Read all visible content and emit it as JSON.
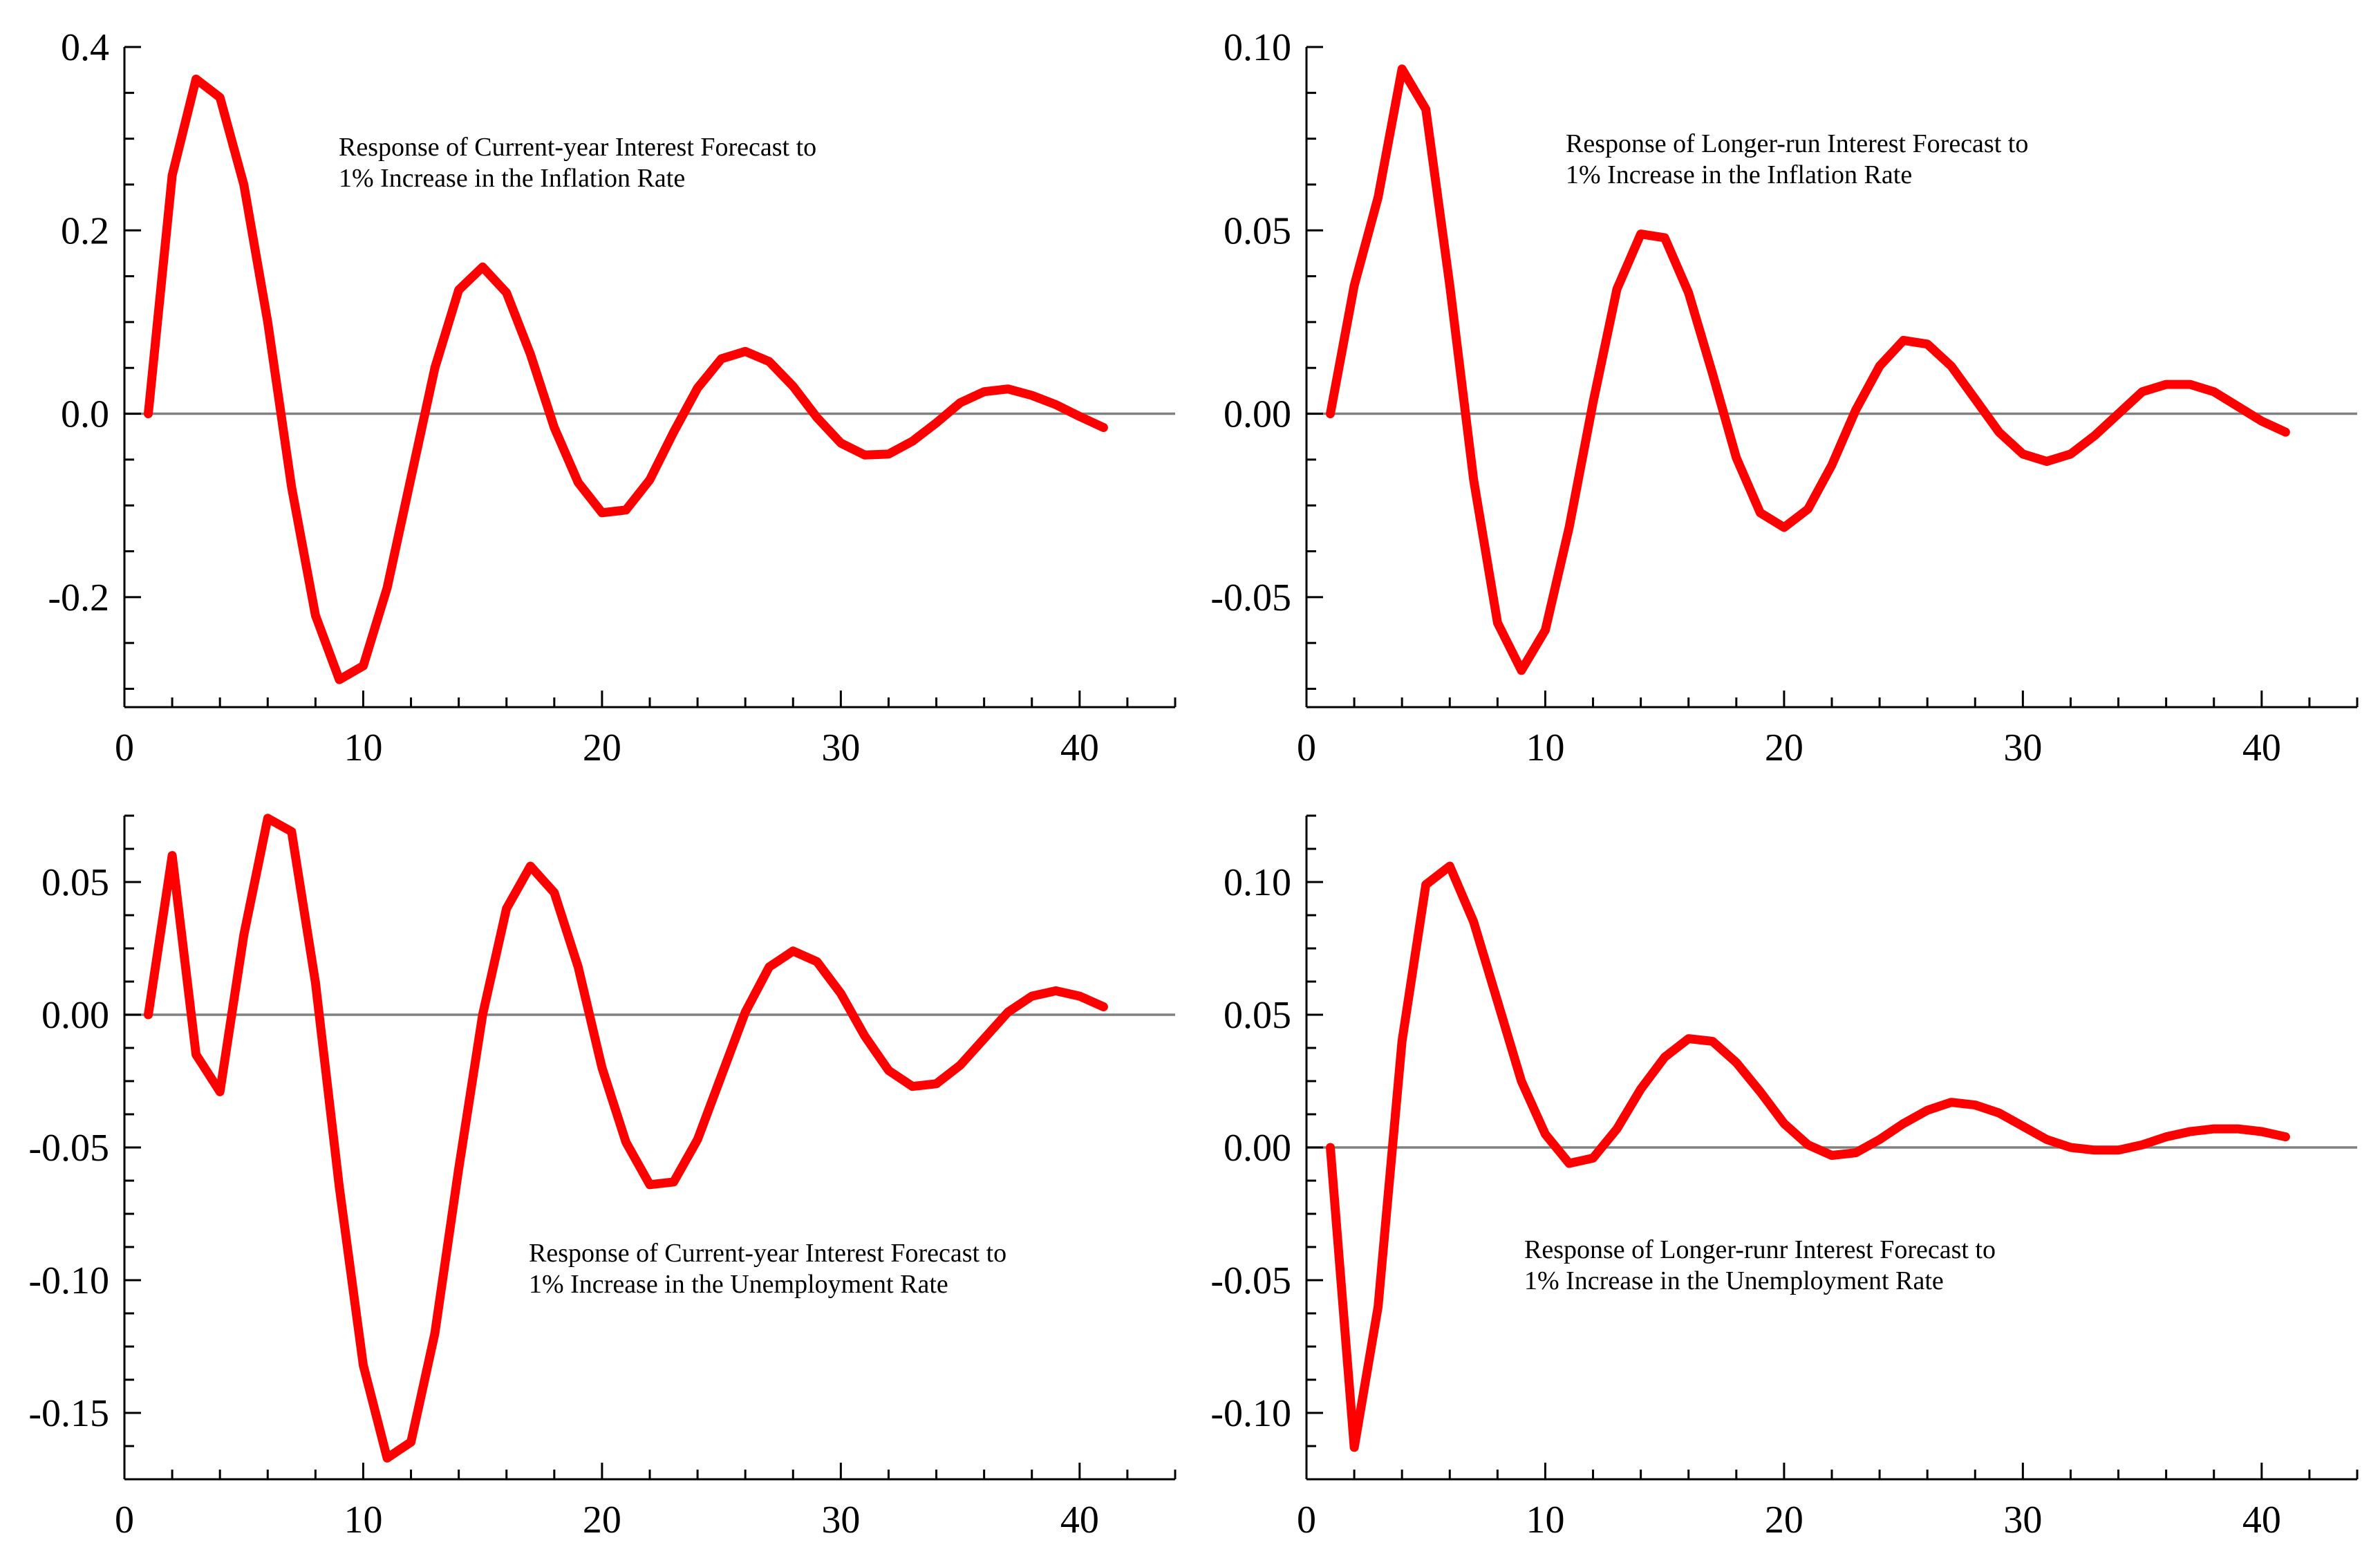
{
  "colors": {
    "series": "#ff0000",
    "zero_line": "#808080",
    "axis": "#000000"
  },
  "chart_data": [
    {
      "type": "line",
      "annotation": [
        "Response of Current-year Interest Forecast to",
        "1% Increase in the Inflation Rate"
      ],
      "xlim": [
        0,
        44
      ],
      "ylim": [
        -0.32,
        0.4
      ],
      "x_ticks": [
        0,
        10,
        20,
        30,
        40
      ],
      "x_tick_labels": [
        "0",
        "10",
        "20",
        "30",
        "40"
      ],
      "y_ticks": [
        -0.2,
        0,
        0.2,
        0.4
      ],
      "y_tick_labels": [
        "-0.2",
        "0.0",
        "0.2",
        "0.4"
      ],
      "y_minor_step": 0.05,
      "x_minor_step": 2,
      "zero_line": true,
      "x": [
        1,
        2,
        3,
        4,
        5,
        6,
        7,
        8,
        9,
        10,
        11,
        12,
        13,
        14,
        15,
        16,
        17,
        18,
        19,
        20,
        21,
        22,
        23,
        24,
        25,
        26,
        27,
        28,
        29,
        30,
        31,
        32,
        33,
        34,
        35,
        36,
        37,
        38,
        39,
        40,
        41
      ],
      "series": [
        {
          "values": [
            0,
            0.26,
            0.365,
            0.345,
            0.25,
            0.1,
            -0.08,
            -0.22,
            -0.29,
            -0.275,
            -0.19,
            -0.07,
            0.05,
            0.135,
            0.16,
            0.132,
            0.065,
            -0.015,
            -0.075,
            -0.108,
            -0.105,
            -0.072,
            -0.02,
            0.028,
            0.06,
            0.068,
            0.057,
            0.03,
            -0.004,
            -0.032,
            -0.045,
            -0.044,
            -0.03,
            -0.01,
            0.012,
            0.024,
            0.027,
            0.02,
            0.01,
            -0.003,
            -0.015
          ]
        }
      ]
    },
    {
      "type": "line",
      "annotation": [
        "Response of Longer-run Interest Forecast to",
        "1% Increase in the Inflation Rate"
      ],
      "xlim": [
        0,
        44
      ],
      "ylim": [
        -0.08,
        0.1
      ],
      "x_ticks": [
        0,
        10,
        20,
        30,
        40
      ],
      "x_tick_labels": [
        "0",
        "10",
        "20",
        "30",
        "40"
      ],
      "y_ticks": [
        -0.05,
        0,
        0.05,
        0.1
      ],
      "y_tick_labels": [
        "-0.05",
        "0.00",
        "0.05",
        "0.10"
      ],
      "y_minor_step": 0.0125,
      "x_minor_step": 2,
      "zero_line": true,
      "x": [
        1,
        2,
        3,
        4,
        5,
        6,
        7,
        8,
        9,
        10,
        11,
        12,
        13,
        14,
        15,
        16,
        17,
        18,
        19,
        20,
        21,
        22,
        23,
        24,
        25,
        26,
        27,
        28,
        29,
        30,
        31,
        32,
        33,
        34,
        35,
        36,
        37,
        38,
        39,
        40,
        41
      ],
      "series": [
        {
          "values": [
            0,
            0.035,
            0.059,
            0.094,
            0.083,
            0.035,
            -0.018,
            -0.057,
            -0.07,
            -0.059,
            -0.031,
            0.003,
            0.034,
            0.049,
            0.048,
            0.033,
            0.011,
            -0.012,
            -0.027,
            -0.031,
            -0.026,
            -0.014,
            0.001,
            0.013,
            0.02,
            0.019,
            0.013,
            0.004,
            -0.005,
            -0.011,
            -0.013,
            -0.011,
            -0.006,
            0,
            0.006,
            0.008,
            0.008,
            0.006,
            0.002,
            -0.002,
            -0.005
          ]
        }
      ]
    },
    {
      "type": "line",
      "annotation": [
        "Response of Current-year Interest Forecast to",
        "1% Increase in the Unemployment Rate"
      ],
      "xlim": [
        0,
        44
      ],
      "ylim": [
        -0.175,
        0.075
      ],
      "x_ticks": [
        0,
        10,
        20,
        30,
        40
      ],
      "x_tick_labels": [
        "0",
        "10",
        "20",
        "30",
        "40"
      ],
      "y_ticks": [
        -0.15,
        -0.1,
        -0.05,
        0,
        0.05
      ],
      "y_tick_labels": [
        "-0.15",
        "-0.10",
        "-0.05",
        "0.00",
        "0.05"
      ],
      "y_minor_step": 0.0125,
      "x_minor_step": 2,
      "zero_line": true,
      "x": [
        1,
        2,
        3,
        4,
        5,
        6,
        7,
        8,
        9,
        10,
        11,
        12,
        13,
        14,
        15,
        16,
        17,
        18,
        19,
        20,
        21,
        22,
        23,
        24,
        25,
        26,
        27,
        28,
        29,
        30,
        31,
        32,
        33,
        34,
        35,
        36,
        37,
        38,
        39,
        40,
        41
      ],
      "series": [
        {
          "values": [
            0,
            0.06,
            -0.015,
            -0.029,
            0.03,
            0.074,
            0.069,
            0.012,
            -0.065,
            -0.132,
            -0.167,
            -0.161,
            -0.12,
            -0.058,
            0,
            0.04,
            0.056,
            0.046,
            0.018,
            -0.02,
            -0.048,
            -0.064,
            -0.063,
            -0.047,
            -0.023,
            0.001,
            0.018,
            0.024,
            0.02,
            0.008,
            -0.008,
            -0.021,
            -0.027,
            -0.026,
            -0.019,
            -0.009,
            0.001,
            0.007,
            0.009,
            0.007,
            0.003
          ]
        }
      ]
    },
    {
      "type": "line",
      "annotation": [
        "Response of Longer-runr Interest Forecast to",
        "1% Increase in the Unemployment Rate"
      ],
      "xlim": [
        0,
        44
      ],
      "ylim": [
        -0.125,
        0.125
      ],
      "x_ticks": [
        0,
        10,
        20,
        30,
        40
      ],
      "x_tick_labels": [
        "0",
        "10",
        "20",
        "30",
        "40"
      ],
      "y_ticks": [
        -0.1,
        -0.05,
        0,
        0.05,
        0.1
      ],
      "y_tick_labels": [
        "-0.10",
        "-0.05",
        "0.00",
        "0.05",
        "0.10"
      ],
      "y_minor_step": 0.0125,
      "x_minor_step": 2,
      "zero_line": true,
      "x": [
        1,
        2,
        3,
        4,
        5,
        6,
        7,
        8,
        9,
        10,
        11,
        12,
        13,
        14,
        15,
        16,
        17,
        18,
        19,
        20,
        21,
        22,
        23,
        24,
        25,
        26,
        27,
        28,
        29,
        30,
        31,
        32,
        33,
        34,
        35,
        36,
        37,
        38,
        39,
        40,
        41
      ],
      "series": [
        {
          "values": [
            0,
            -0.113,
            -0.06,
            0.04,
            0.099,
            0.106,
            0.085,
            0.055,
            0.025,
            0.005,
            -0.006,
            -0.004,
            0.007,
            0.022,
            0.034,
            0.041,
            0.04,
            0.032,
            0.021,
            0.009,
            0.001,
            -0.003,
            -0.002,
            0.003,
            0.009,
            0.014,
            0.017,
            0.016,
            0.013,
            0.008,
            0.003,
            0,
            -0.001,
            -0.001,
            0.001,
            0.004,
            0.006,
            0.007,
            0.007,
            0.006,
            0.004
          ]
        }
      ]
    }
  ]
}
